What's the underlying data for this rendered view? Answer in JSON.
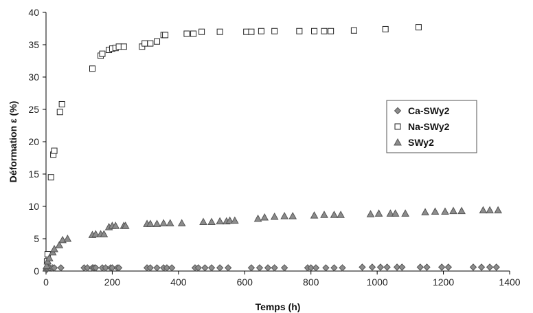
{
  "chart_data": {
    "type": "scatter",
    "xlabel": "Temps (h)",
    "ylabel": "Déformation ε (%)",
    "xlim": [
      0,
      1400
    ],
    "ylim": [
      0,
      40
    ],
    "xticks": [
      0,
      200,
      400,
      600,
      800,
      1000,
      1200,
      1400
    ],
    "yticks": [
      0,
      5,
      10,
      15,
      20,
      25,
      30,
      35,
      40
    ],
    "grid": false,
    "legend_position": "right",
    "series": [
      {
        "name": "Ca-SWy2",
        "marker": "diamond",
        "color": "#8c8c8c",
        "points": [
          [
            1,
            0.2
          ],
          [
            3,
            0.3
          ],
          [
            5,
            0.4
          ],
          [
            8,
            0.5
          ],
          [
            12,
            0.5
          ],
          [
            20,
            0.5
          ],
          [
            25,
            0.5
          ],
          [
            45,
            0.5
          ],
          [
            115,
            0.5
          ],
          [
            125,
            0.5
          ],
          [
            140,
            0.5
          ],
          [
            145,
            0.5
          ],
          [
            150,
            0.5
          ],
          [
            170,
            0.5
          ],
          [
            180,
            0.5
          ],
          [
            195,
            0.5
          ],
          [
            200,
            0.5
          ],
          [
            215,
            0.5
          ],
          [
            220,
            0.5
          ],
          [
            305,
            0.5
          ],
          [
            315,
            0.5
          ],
          [
            335,
            0.5
          ],
          [
            355,
            0.5
          ],
          [
            365,
            0.5
          ],
          [
            380,
            0.5
          ],
          [
            450,
            0.5
          ],
          [
            460,
            0.5
          ],
          [
            480,
            0.5
          ],
          [
            500,
            0.5
          ],
          [
            525,
            0.5
          ],
          [
            550,
            0.5
          ],
          [
            620,
            0.5
          ],
          [
            645,
            0.5
          ],
          [
            670,
            0.5
          ],
          [
            690,
            0.5
          ],
          [
            720,
            0.5
          ],
          [
            790,
            0.5
          ],
          [
            800,
            0.5
          ],
          [
            815,
            0.5
          ],
          [
            845,
            0.5
          ],
          [
            870,
            0.5
          ],
          [
            895,
            0.5
          ],
          [
            955,
            0.6
          ],
          [
            985,
            0.6
          ],
          [
            1010,
            0.6
          ],
          [
            1030,
            0.6
          ],
          [
            1060,
            0.6
          ],
          [
            1075,
            0.6
          ],
          [
            1130,
            0.6
          ],
          [
            1150,
            0.6
          ],
          [
            1195,
            0.6
          ],
          [
            1215,
            0.6
          ],
          [
            1290,
            0.6
          ],
          [
            1315,
            0.6
          ],
          [
            1340,
            0.6
          ],
          [
            1360,
            0.6
          ]
        ]
      },
      {
        "name": "Na-SWy2",
        "marker": "square",
        "color": "#ffffff",
        "points": [
          [
            3,
            1.5
          ],
          [
            5,
            2.6
          ],
          [
            15,
            14.5
          ],
          [
            22,
            18.0
          ],
          [
            25,
            18.6
          ],
          [
            42,
            24.6
          ],
          [
            48,
            25.8
          ],
          [
            140,
            31.3
          ],
          [
            165,
            33.3
          ],
          [
            170,
            33.6
          ],
          [
            190,
            34.2
          ],
          [
            200,
            34.4
          ],
          [
            210,
            34.5
          ],
          [
            220,
            34.7
          ],
          [
            235,
            34.7
          ],
          [
            290,
            34.7
          ],
          [
            298,
            35.2
          ],
          [
            315,
            35.2
          ],
          [
            335,
            35.5
          ],
          [
            355,
            36.5
          ],
          [
            360,
            36.5
          ],
          [
            425,
            36.7
          ],
          [
            445,
            36.7
          ],
          [
            470,
            37.0
          ],
          [
            525,
            37.0
          ],
          [
            605,
            37.0
          ],
          [
            620,
            37.0
          ],
          [
            650,
            37.1
          ],
          [
            690,
            37.1
          ],
          [
            765,
            37.1
          ],
          [
            810,
            37.1
          ],
          [
            840,
            37.1
          ],
          [
            860,
            37.1
          ],
          [
            930,
            37.2
          ],
          [
            1025,
            37.4
          ],
          [
            1125,
            37.7
          ]
        ]
      },
      {
        "name": "SWy2",
        "marker": "triangle",
        "color": "#8c8c8c",
        "points": [
          [
            2,
            0.8
          ],
          [
            5,
            1.5
          ],
          [
            10,
            2.0
          ],
          [
            20,
            2.9
          ],
          [
            25,
            3.4
          ],
          [
            40,
            4.0
          ],
          [
            50,
            4.8
          ],
          [
            65,
            5.0
          ],
          [
            140,
            5.6
          ],
          [
            150,
            5.7
          ],
          [
            165,
            5.7
          ],
          [
            175,
            5.7
          ],
          [
            190,
            6.8
          ],
          [
            200,
            7.0
          ],
          [
            210,
            7.0
          ],
          [
            235,
            7.0
          ],
          [
            240,
            7.0
          ],
          [
            305,
            7.3
          ],
          [
            315,
            7.3
          ],
          [
            335,
            7.3
          ],
          [
            355,
            7.4
          ],
          [
            375,
            7.4
          ],
          [
            410,
            7.4
          ],
          [
            475,
            7.6
          ],
          [
            500,
            7.6
          ],
          [
            525,
            7.7
          ],
          [
            545,
            7.7
          ],
          [
            555,
            7.8
          ],
          [
            570,
            7.8
          ],
          [
            640,
            8.1
          ],
          [
            660,
            8.3
          ],
          [
            690,
            8.4
          ],
          [
            720,
            8.5
          ],
          [
            745,
            8.5
          ],
          [
            810,
            8.6
          ],
          [
            840,
            8.7
          ],
          [
            870,
            8.7
          ],
          [
            890,
            8.7
          ],
          [
            980,
            8.8
          ],
          [
            1005,
            8.9
          ],
          [
            1040,
            8.9
          ],
          [
            1055,
            8.9
          ],
          [
            1085,
            8.9
          ],
          [
            1145,
            9.1
          ],
          [
            1175,
            9.2
          ],
          [
            1205,
            9.2
          ],
          [
            1230,
            9.3
          ],
          [
            1255,
            9.3
          ],
          [
            1320,
            9.4
          ],
          [
            1340,
            9.4
          ],
          [
            1365,
            9.4
          ]
        ]
      }
    ]
  }
}
